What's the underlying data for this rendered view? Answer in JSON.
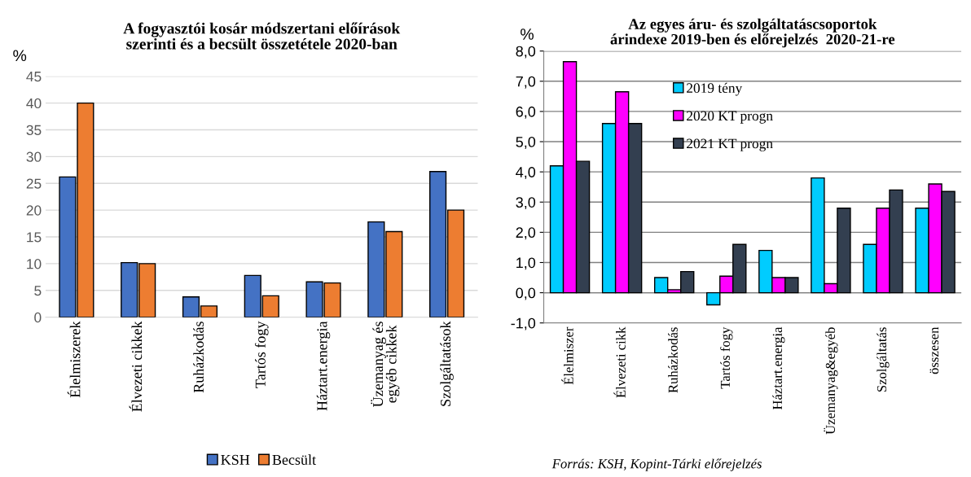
{
  "chart_data": [
    {
      "type": "bar",
      "title": "A fogyasztói kosár módszertani előírások\nszerinti és a becsült összetétele 2020-ban",
      "ylabel": "%",
      "categories": [
        "Élelmiszerek",
        "Élvezeti cikkek",
        "Ruházkodás",
        "Tartós fogy",
        "Háztart.energia",
        "Üzemanyag és\negyéb cikkek",
        "Szolgáltatások"
      ],
      "series": [
        {
          "name": "KSH",
          "color": "#4472c4",
          "values": [
            26.2,
            10.2,
            3.8,
            7.8,
            6.6,
            17.8,
            27.2
          ]
        },
        {
          "name": "Becsült",
          "color": "#ed7d31",
          "values": [
            40,
            10,
            2.1,
            4,
            6.4,
            16,
            20
          ]
        }
      ],
      "ylim": [
        0,
        45
      ],
      "yticks": [
        0,
        5,
        10,
        15,
        20,
        25,
        30,
        35,
        40,
        45
      ],
      "grid": "y",
      "legend": "bottom"
    },
    {
      "type": "bar",
      "title": "Az egyes áru- és szolgáltatáscsoportok\nárindexe 2019-ben és előrejelzés  2020-21-re",
      "ylabel": "%",
      "categories": [
        "Élelmiszer",
        "Élvezeti cikk",
        "Ruházkodás",
        "Tartós fogy",
        "Háztart.energia",
        "Üzemanyag&egyéb",
        "Szolgáltatás",
        "összesen"
      ],
      "series": [
        {
          "name": "2019 tény",
          "color": "#00ccff",
          "values": [
            4.2,
            5.6,
            0.5,
            -0.4,
            1.4,
            3.8,
            1.6,
            2.8
          ]
        },
        {
          "name": "2020 KT progn",
          "color": "#ff00ff",
          "values": [
            7.65,
            6.65,
            0.1,
            0.55,
            0.5,
            0.3,
            2.8,
            3.6
          ]
        },
        {
          "name": "2021 KT progn",
          "color": "#333f50",
          "values": [
            4.35,
            5.6,
            0.7,
            1.6,
            0.5,
            2.8,
            3.4,
            3.35
          ]
        }
      ],
      "ylim": [
        -1,
        8
      ],
      "yticks": [
        {
          "value": -1,
          "label": "-1,0"
        },
        {
          "value": 0,
          "label": "0,0"
        },
        {
          "value": 1,
          "label": "1,0"
        },
        {
          "value": 2,
          "label": "2,0"
        },
        {
          "value": 3,
          "label": "3,0"
        },
        {
          "value": 4,
          "label": "4,0"
        },
        {
          "value": 5,
          "label": "5,0"
        },
        {
          "value": 6,
          "label": "6,0"
        },
        {
          "value": 7,
          "label": "7,0"
        },
        {
          "value": 8,
          "label": "8,0"
        }
      ],
      "grid": "y",
      "legend": "top",
      "annotations": [
        "Forrás: KSH, Kopint-Tárki előrejelzés"
      ]
    }
  ]
}
